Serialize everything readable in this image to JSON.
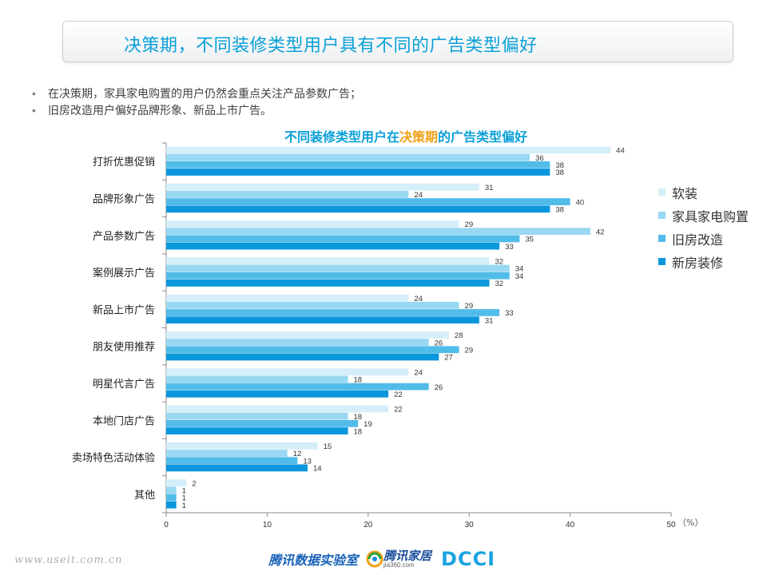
{
  "header": {
    "title": "决策期，不同装修类型用户具有不同的广告类型偏好"
  },
  "bullets": [
    "在决策期，家具家电购置的用户仍然会重点关注产品参数广告；",
    "旧房改造用户偏好品牌形象、新品上市广告。"
  ],
  "chart_data": {
    "type": "bar",
    "orientation": "horizontal",
    "title_parts": [
      "不同装修类型用户在",
      "决策期",
      "的广告类型偏好"
    ],
    "unit_label": "（%）",
    "categories": [
      "打折优惠促销",
      "品牌形象广告",
      "产品参数广告",
      "案例展示广告",
      "新品上市广告",
      "朋友使用推荐",
      "明星代言广告",
      "本地门店广告",
      "卖场特色活动体验",
      "其他"
    ],
    "series": [
      {
        "name": "软装",
        "color": "#d4eefa",
        "values": [
          44,
          31,
          29,
          32,
          24,
          28,
          24,
          22,
          15,
          2
        ]
      },
      {
        "name": "家具家电购置",
        "color": "#99d8f3",
        "values": [
          36,
          24,
          42,
          34,
          29,
          26,
          18,
          18,
          12,
          1
        ]
      },
      {
        "name": "旧房改造",
        "color": "#52bce9",
        "values": [
          38,
          40,
          35,
          34,
          33,
          29,
          26,
          19,
          13,
          1
        ]
      },
      {
        "name": "新房装修",
        "color": "#0b97dc",
        "values": [
          38,
          38,
          33,
          32,
          31,
          27,
          22,
          18,
          14,
          1
        ]
      }
    ],
    "xlim": [
      0,
      50
    ],
    "xticks": [
      0,
      10,
      20,
      30,
      40,
      50
    ],
    "legend_position": "right",
    "grid": false
  },
  "footer": {
    "url": "www.useit.com.cn",
    "logo_lab": "腾讯数据实验室",
    "logo_jiaju": "腾讯家居",
    "logo_jiaju_sub": "jia360.com",
    "logo_dcci": "DCCI"
  }
}
